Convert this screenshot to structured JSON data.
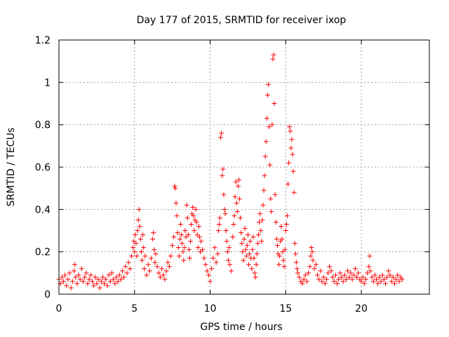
{
  "chart_data": {
    "type": "scatter",
    "title": "Day 177 of 2015, SRMTID for receiver ixop",
    "xlabel": "GPS time / hours",
    "ylabel": "SRMTID / TECUs",
    "xlim": [
      0,
      24.5
    ],
    "ylim": [
      0,
      1.2
    ],
    "xticks": [
      0,
      5,
      10,
      15,
      20
    ],
    "xtick_labels": [
      "0",
      "5",
      "10",
      "15",
      "20"
    ],
    "yticks": [
      0,
      0.2,
      0.4,
      0.6,
      0.8,
      1.0,
      1.2
    ],
    "ytick_labels": [
      "0",
      "0.2",
      "0.4",
      "0.6",
      "0.8",
      "1",
      "1.2"
    ],
    "grid": true,
    "marker": "+",
    "color": "#ff0000",
    "series": [
      {
        "name": "SRMTID",
        "points": [
          [
            0.0,
            0.07
          ],
          [
            0.1,
            0.05
          ],
          [
            0.2,
            0.08
          ],
          [
            0.3,
            0.06
          ],
          [
            0.4,
            0.09
          ],
          [
            0.5,
            0.04
          ],
          [
            0.6,
            0.07
          ],
          [
            0.7,
            0.1
          ],
          [
            0.8,
            0.03
          ],
          [
            0.9,
            0.06
          ],
          [
            1.0,
            0.11
          ],
          [
            1.05,
            0.14
          ],
          [
            1.1,
            0.08
          ],
          [
            1.2,
            0.05
          ],
          [
            1.3,
            0.09
          ],
          [
            1.4,
            0.07
          ],
          [
            1.5,
            0.12
          ],
          [
            1.6,
            0.06
          ],
          [
            1.7,
            0.08
          ],
          [
            1.8,
            0.1
          ],
          [
            1.9,
            0.05
          ],
          [
            2.0,
            0.07
          ],
          [
            2.1,
            0.09
          ],
          [
            2.2,
            0.06
          ],
          [
            2.3,
            0.04
          ],
          [
            2.4,
            0.08
          ],
          [
            2.5,
            0.05
          ],
          [
            2.6,
            0.07
          ],
          [
            2.7,
            0.03
          ],
          [
            2.8,
            0.06
          ],
          [
            2.9,
            0.08
          ],
          [
            3.0,
            0.05
          ],
          [
            3.1,
            0.07
          ],
          [
            3.2,
            0.04
          ],
          [
            3.3,
            0.09
          ],
          [
            3.4,
            0.06
          ],
          [
            3.5,
            0.1
          ],
          [
            3.6,
            0.07
          ],
          [
            3.7,
            0.05
          ],
          [
            3.8,
            0.08
          ],
          [
            3.9,
            0.06
          ],
          [
            4.0,
            0.09
          ],
          [
            4.1,
            0.07
          ],
          [
            4.2,
            0.11
          ],
          [
            4.3,
            0.08
          ],
          [
            4.4,
            0.13
          ],
          [
            4.5,
            0.1
          ],
          [
            4.6,
            0.15
          ],
          [
            4.7,
            0.12
          ],
          [
            4.8,
            0.18
          ],
          [
            4.9,
            0.22
          ],
          [
            4.95,
            0.25
          ],
          [
            5.0,
            0.2
          ],
          [
            5.05,
            0.28
          ],
          [
            5.1,
            0.24
          ],
          [
            5.15,
            0.18
          ],
          [
            5.2,
            0.3
          ],
          [
            5.25,
            0.35
          ],
          [
            5.3,
            0.4
          ],
          [
            5.35,
            0.32
          ],
          [
            5.4,
            0.26
          ],
          [
            5.45,
            0.2
          ],
          [
            5.5,
            0.16
          ],
          [
            5.55,
            0.28
          ],
          [
            5.6,
            0.22
          ],
          [
            5.65,
            0.12
          ],
          [
            5.7,
            0.18
          ],
          [
            5.8,
            0.09
          ],
          [
            5.9,
            0.14
          ],
          [
            6.0,
            0.11
          ],
          [
            6.1,
            0.17
          ],
          [
            6.2,
            0.26
          ],
          [
            6.25,
            0.29
          ],
          [
            6.3,
            0.21
          ],
          [
            6.35,
            0.15
          ],
          [
            6.4,
            0.19
          ],
          [
            6.5,
            0.13
          ],
          [
            6.6,
            0.1
          ],
          [
            6.7,
            0.08
          ],
          [
            6.8,
            0.12
          ],
          [
            6.9,
            0.09
          ],
          [
            7.0,
            0.07
          ],
          [
            7.1,
            0.11
          ],
          [
            7.2,
            0.15
          ],
          [
            7.3,
            0.13
          ],
          [
            7.4,
            0.18
          ],
          [
            7.5,
            0.23
          ],
          [
            7.6,
            0.27
          ],
          [
            7.65,
            0.51
          ],
          [
            7.7,
            0.5
          ],
          [
            7.75,
            0.43
          ],
          [
            7.8,
            0.37
          ],
          [
            7.85,
            0.29
          ],
          [
            7.9,
            0.22
          ],
          [
            7.95,
            0.18
          ],
          [
            8.0,
            0.26
          ],
          [
            8.05,
            0.33
          ],
          [
            8.1,
            0.28
          ],
          [
            8.15,
            0.24
          ],
          [
            8.2,
            0.2
          ],
          [
            8.25,
            0.16
          ],
          [
            8.3,
            0.22
          ],
          [
            8.35,
            0.3
          ],
          [
            8.4,
            0.27
          ],
          [
            8.45,
            0.42
          ],
          [
            8.5,
            0.36
          ],
          [
            8.55,
            0.28
          ],
          [
            8.6,
            0.21
          ],
          [
            8.65,
            0.17
          ],
          [
            8.7,
            0.25
          ],
          [
            8.75,
            0.33
          ],
          [
            8.8,
            0.38
          ],
          [
            8.85,
            0.41
          ],
          [
            8.9,
            0.37
          ],
          [
            8.95,
            0.3
          ],
          [
            9.0,
            0.35
          ],
          [
            9.05,
            0.4
          ],
          [
            9.1,
            0.34
          ],
          [
            9.15,
            0.28
          ],
          [
            9.2,
            0.22
          ],
          [
            9.25,
            0.32
          ],
          [
            9.3,
            0.27
          ],
          [
            9.35,
            0.2
          ],
          [
            9.4,
            0.25
          ],
          [
            9.5,
            0.21
          ],
          [
            9.6,
            0.17
          ],
          [
            9.7,
            0.14
          ],
          [
            9.8,
            0.11
          ],
          [
            9.9,
            0.09
          ],
          [
            10.0,
            0.06
          ],
          [
            10.1,
            0.12
          ],
          [
            10.2,
            0.17
          ],
          [
            10.3,
            0.22
          ],
          [
            10.4,
            0.15
          ],
          [
            10.5,
            0.19
          ],
          [
            10.55,
            0.3
          ],
          [
            10.6,
            0.33
          ],
          [
            10.65,
            0.36
          ],
          [
            10.7,
            0.74
          ],
          [
            10.75,
            0.76
          ],
          [
            10.8,
            0.56
          ],
          [
            10.85,
            0.59
          ],
          [
            10.9,
            0.47
          ],
          [
            10.95,
            0.4
          ],
          [
            11.0,
            0.38
          ],
          [
            11.05,
            0.3
          ],
          [
            11.1,
            0.25
          ],
          [
            11.15,
            0.2
          ],
          [
            11.2,
            0.16
          ],
          [
            11.25,
            0.22
          ],
          [
            11.3,
            0.14
          ],
          [
            11.4,
            0.11
          ],
          [
            11.5,
            0.27
          ],
          [
            11.55,
            0.33
          ],
          [
            11.6,
            0.37
          ],
          [
            11.65,
            0.46
          ],
          [
            11.7,
            0.53
          ],
          [
            11.75,
            0.43
          ],
          [
            11.8,
            0.39
          ],
          [
            11.85,
            0.51
          ],
          [
            11.9,
            0.54
          ],
          [
            11.95,
            0.45
          ],
          [
            12.0,
            0.36
          ],
          [
            12.05,
            0.29
          ],
          [
            12.1,
            0.24
          ],
          [
            12.15,
            0.2
          ],
          [
            12.2,
            0.16
          ],
          [
            12.25,
            0.26
          ],
          [
            12.3,
            0.31
          ],
          [
            12.35,
            0.21
          ],
          [
            12.4,
            0.18
          ],
          [
            12.45,
            0.23
          ],
          [
            12.5,
            0.28
          ],
          [
            12.55,
            0.14
          ],
          [
            12.6,
            0.19
          ],
          [
            12.65,
            0.25
          ],
          [
            12.7,
            0.17
          ],
          [
            12.75,
            0.12
          ],
          [
            12.8,
            0.21
          ],
          [
            12.85,
            0.27
          ],
          [
            12.9,
            0.17
          ],
          [
            12.95,
            0.1
          ],
          [
            13.0,
            0.08
          ],
          [
            13.05,
            0.14
          ],
          [
            13.1,
            0.19
          ],
          [
            13.15,
            0.24
          ],
          [
            13.2,
            0.28
          ],
          [
            13.25,
            0.34
          ],
          [
            13.3,
            0.38
          ],
          [
            13.35,
            0.3
          ],
          [
            13.4,
            0.25
          ],
          [
            13.45,
            0.35
          ],
          [
            13.5,
            0.42
          ],
          [
            13.55,
            0.49
          ],
          [
            13.6,
            0.56
          ],
          [
            13.65,
            0.65
          ],
          [
            13.7,
            0.72
          ],
          [
            13.75,
            0.83
          ],
          [
            13.8,
            0.94
          ],
          [
            13.85,
            0.99
          ],
          [
            13.9,
            0.79
          ],
          [
            13.95,
            0.61
          ],
          [
            14.0,
            0.45
          ],
          [
            14.05,
            0.39
          ],
          [
            14.1,
            0.8
          ],
          [
            14.15,
            1.11
          ],
          [
            14.2,
            1.13
          ],
          [
            14.25,
            0.9
          ],
          [
            14.3,
            0.47
          ],
          [
            14.35,
            0.34
          ],
          [
            14.4,
            0.26
          ],
          [
            14.45,
            0.23
          ],
          [
            14.5,
            0.19
          ],
          [
            14.55,
            0.14
          ],
          [
            14.6,
            0.18
          ],
          [
            14.65,
            0.25
          ],
          [
            14.7,
            0.32
          ],
          [
            14.75,
            0.26
          ],
          [
            14.8,
            0.2
          ],
          [
            14.85,
            0.16
          ],
          [
            14.9,
            0.13
          ],
          [
            14.95,
            0.21
          ],
          [
            15.0,
            0.3
          ],
          [
            15.05,
            0.33
          ],
          [
            15.1,
            0.37
          ],
          [
            15.15,
            0.52
          ],
          [
            15.2,
            0.62
          ],
          [
            15.25,
            0.79
          ],
          [
            15.3,
            0.77
          ],
          [
            15.35,
            0.69
          ],
          [
            15.4,
            0.73
          ],
          [
            15.45,
            0.66
          ],
          [
            15.5,
            0.58
          ],
          [
            15.55,
            0.48
          ],
          [
            15.6,
            0.24
          ],
          [
            15.65,
            0.19
          ],
          [
            15.7,
            0.15
          ],
          [
            15.75,
            0.12
          ],
          [
            15.8,
            0.1
          ],
          [
            15.9,
            0.08
          ],
          [
            16.0,
            0.06
          ],
          [
            16.1,
            0.05
          ],
          [
            16.2,
            0.07
          ],
          [
            16.3,
            0.09
          ],
          [
            16.4,
            0.06
          ],
          [
            16.5,
            0.1
          ],
          [
            16.6,
            0.13
          ],
          [
            16.65,
            0.18
          ],
          [
            16.7,
            0.22
          ],
          [
            16.75,
            0.2
          ],
          [
            16.8,
            0.16
          ],
          [
            16.9,
            0.12
          ],
          [
            17.0,
            0.14
          ],
          [
            17.1,
            0.09
          ],
          [
            17.2,
            0.07
          ],
          [
            17.3,
            0.11
          ],
          [
            17.4,
            0.06
          ],
          [
            17.5,
            0.08
          ],
          [
            17.6,
            0.05
          ],
          [
            17.7,
            0.07
          ],
          [
            17.8,
            0.1
          ],
          [
            17.9,
            0.13
          ],
          [
            18.0,
            0.11
          ],
          [
            18.1,
            0.08
          ],
          [
            18.2,
            0.06
          ],
          [
            18.3,
            0.09
          ],
          [
            18.4,
            0.05
          ],
          [
            18.5,
            0.07
          ],
          [
            18.6,
            0.1
          ],
          [
            18.7,
            0.08
          ],
          [
            18.8,
            0.06
          ],
          [
            18.9,
            0.09
          ],
          [
            19.0,
            0.07
          ],
          [
            19.1,
            0.11
          ],
          [
            19.2,
            0.08
          ],
          [
            19.3,
            0.1
          ],
          [
            19.4,
            0.07
          ],
          [
            19.5,
            0.09
          ],
          [
            19.6,
            0.12
          ],
          [
            19.7,
            0.08
          ],
          [
            19.8,
            0.1
          ],
          [
            19.9,
            0.07
          ],
          [
            20.0,
            0.06
          ],
          [
            20.1,
            0.08
          ],
          [
            20.2,
            0.05
          ],
          [
            20.3,
            0.07
          ],
          [
            20.4,
            0.1
          ],
          [
            20.5,
            0.13
          ],
          [
            20.55,
            0.18
          ],
          [
            20.6,
            0.11
          ],
          [
            20.7,
            0.08
          ],
          [
            20.8,
            0.06
          ],
          [
            20.9,
            0.09
          ],
          [
            21.0,
            0.07
          ],
          [
            21.1,
            0.05
          ],
          [
            21.2,
            0.08
          ],
          [
            21.3,
            0.06
          ],
          [
            21.4,
            0.09
          ],
          [
            21.5,
            0.07
          ],
          [
            21.6,
            0.05
          ],
          [
            21.7,
            0.08
          ],
          [
            21.8,
            0.11
          ],
          [
            21.9,
            0.09
          ],
          [
            22.0,
            0.06
          ],
          [
            22.1,
            0.08
          ],
          [
            22.2,
            0.05
          ],
          [
            22.3,
            0.07
          ],
          [
            22.4,
            0.09
          ],
          [
            22.5,
            0.06
          ],
          [
            22.6,
            0.08
          ],
          [
            22.7,
            0.07
          ]
        ]
      }
    ]
  }
}
